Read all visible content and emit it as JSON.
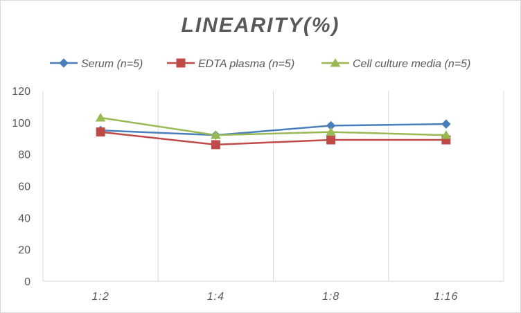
{
  "chart_data": {
    "type": "line",
    "title": "LINEARITY(%)",
    "categories": [
      "1:2",
      "1:4",
      "1:8",
      "1:16"
    ],
    "series": [
      {
        "name": "Serum (n=5)",
        "values": [
          95,
          92,
          98,
          99
        ],
        "color": "#4a7ebb",
        "marker": "diamond"
      },
      {
        "name": "EDTA plasma (n=5)",
        "values": [
          94,
          86,
          89,
          89
        ],
        "color": "#be4b48",
        "marker": "square"
      },
      {
        "name": "Cell culture media (n=5)",
        "values": [
          103,
          92,
          94,
          92
        ],
        "color": "#98b954",
        "marker": "triangle"
      }
    ],
    "ylim": [
      0,
      120
    ],
    "yticks": [
      "0",
      "20",
      "40",
      "60",
      "80",
      "100",
      "120"
    ],
    "grid": "vertical category separators",
    "legend": "top"
  }
}
